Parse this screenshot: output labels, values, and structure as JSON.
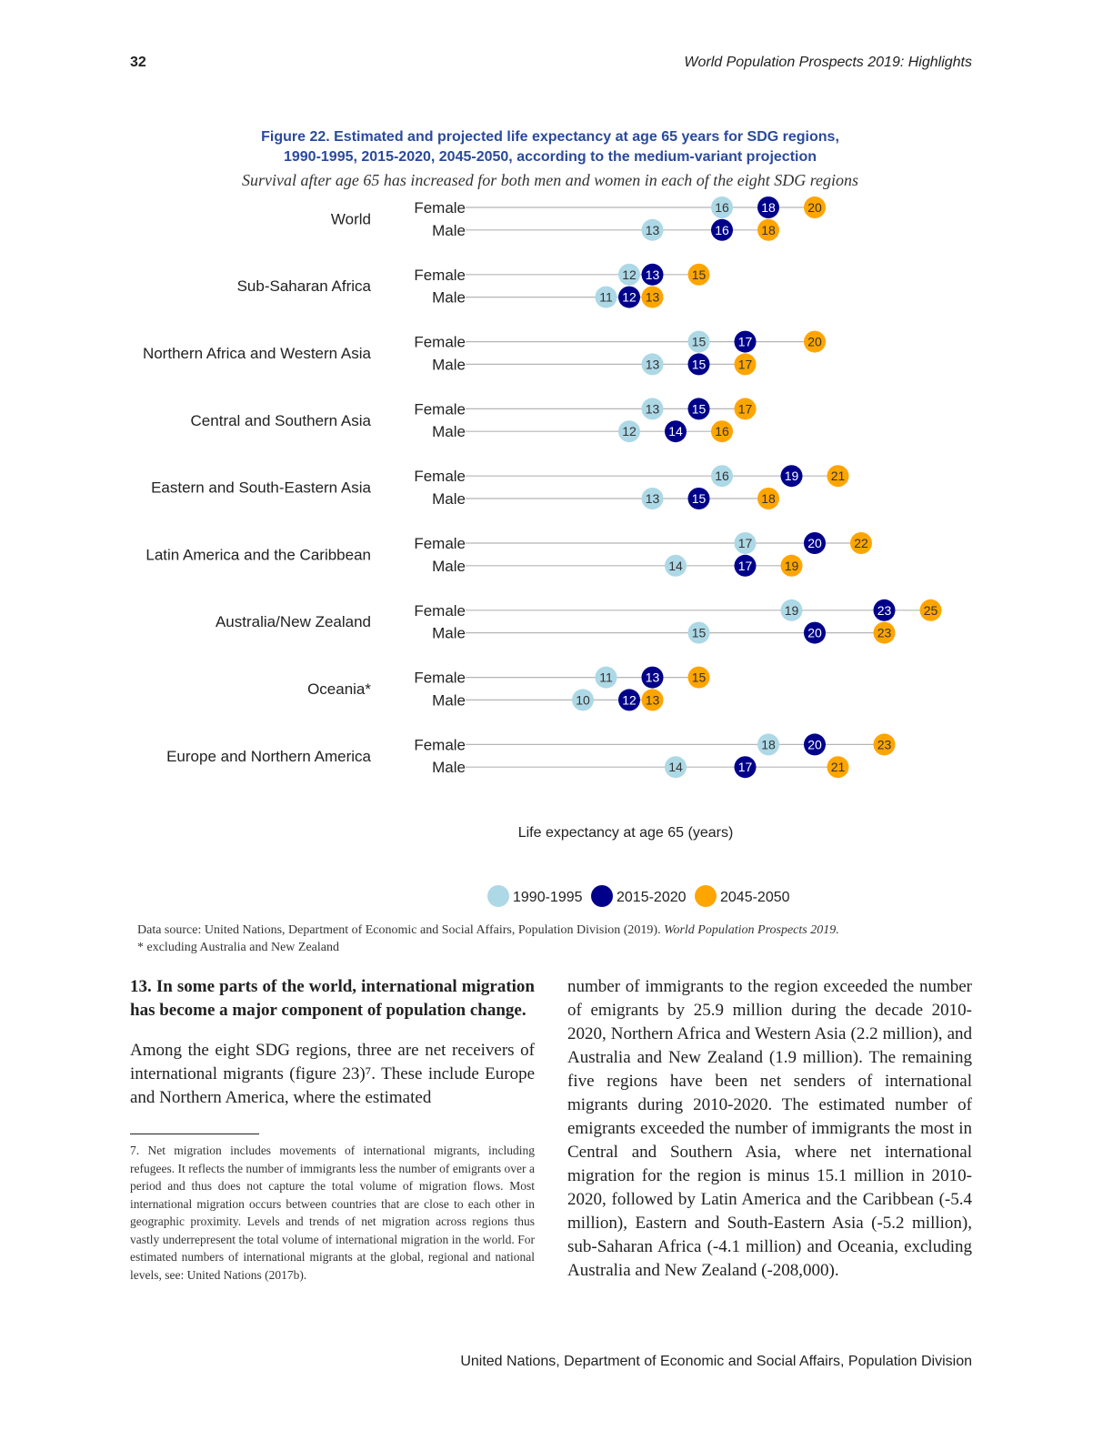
{
  "header": {
    "page_number": "32",
    "running_title": "World Population Prospects 2019: Highlights"
  },
  "figure": {
    "title_line1": "Figure 22. Estimated and projected life expectancy at age 65 years for SDG regions,",
    "title_line2": "1990-1995, 2015-2020, 2045-2050, according to the medium-variant projection",
    "subtitle": "Survival after age 65 has increased for both men and women in each of the eight SDG regions"
  },
  "chart_data": {
    "type": "dot",
    "title": "Figure 22. Estimated and projected life expectancy at age 65 years for SDG regions, 1990-1995, 2015-2020, 2045-2050, according to the medium-variant projection",
    "xlabel": "Life expectancy at age 65 (years)",
    "ylabel": "",
    "series": [
      {
        "name": "1990-1995",
        "color": "#add8e6",
        "label_color": "#333333"
      },
      {
        "name": "2015-2020",
        "color": "#00008b",
        "label_color": "#ffffff"
      },
      {
        "name": "2045-2050",
        "color": "#ffa500",
        "label_color": "#333333"
      }
    ],
    "legend": "bottom",
    "grid": false,
    "sex_labels": [
      "Female",
      "Male"
    ],
    "regions": [
      {
        "name": "World",
        "female": [
          16,
          18,
          20
        ],
        "male": [
          13,
          16,
          18
        ]
      },
      {
        "name": "Sub-Saharan Africa",
        "female": [
          12,
          13,
          15
        ],
        "male": [
          11,
          12,
          13
        ]
      },
      {
        "name": "Northern Africa and Western Asia",
        "female": [
          15,
          17,
          20
        ],
        "male": [
          13,
          15,
          17
        ]
      },
      {
        "name": "Central and Southern Asia",
        "female": [
          13,
          15,
          17
        ],
        "male": [
          12,
          14,
          16
        ]
      },
      {
        "name": "Eastern and South-Eastern Asia",
        "female": [
          16,
          19,
          21
        ],
        "male": [
          13,
          15,
          18
        ]
      },
      {
        "name": "Latin America and the Caribbean",
        "female": [
          17,
          20,
          22
        ],
        "male": [
          14,
          17,
          19
        ]
      },
      {
        "name": "Australia/New Zealand",
        "female": [
          19,
          23,
          25
        ],
        "male": [
          15,
          20,
          23
        ]
      },
      {
        "name": "Oceania*",
        "female": [
          11,
          13,
          15
        ],
        "male": [
          10,
          12,
          13
        ]
      },
      {
        "name": "Europe and Northern America",
        "female": [
          18,
          20,
          23
        ],
        "male": [
          14,
          17,
          21
        ]
      }
    ]
  },
  "source": {
    "text_prefix": "Data source: United Nations, Department of Economic and Social Affairs, Population Division (2019). ",
    "text_italic": "World Population Prospects 2019.",
    "note": "* excluding Australia and New Zealand"
  },
  "body": {
    "heading": "13. In some parts of the world, international migration has become a major component of population change.",
    "para_left": "Among the eight SDG regions, three are net receivers of international migrants (figure 23)⁷. These include Europe and Northern America, where the estimated",
    "footnote": "7.   Net migration includes movements of international  migrants, including refugees. It reflects the number of immigrants less the number of emigrants over a period and thus does not capture the total volume of migration flows. Most international migration occurs between countries that are close to each other in geographic proximity. Levels and trends of net migration across regions thus vastly underrepresent the total volume of international migration in the world. For estimated numbers of international migrants at the global, regional and national levels, see: United Nations (2017b).",
    "para_right": "number of immigrants to the region exceeded the number of emigrants by 25.9 million during the decade 2010-2020, Northern Africa and Western Asia (2.2 million), and Australia and New Zealand (1.9 million). The remaining five regions have been net senders of international migrants during 2010-2020. The estimated number of emigrants exceeded the number of immigrants the most in Central and Southern Asia, where net international migration for the region is minus 15.1 million in 2010-2020, followed by Latin America and the Caribbean (-5.4 million), Eastern and South-Eastern Asia (-5.2 million), sub-Saharan Africa (-4.1 million) and Oceania, excluding Australia and New Zealand (-208,000)."
  },
  "footer": {
    "text": "United Nations, Department of Economic and Social Affairs, Population Division"
  }
}
